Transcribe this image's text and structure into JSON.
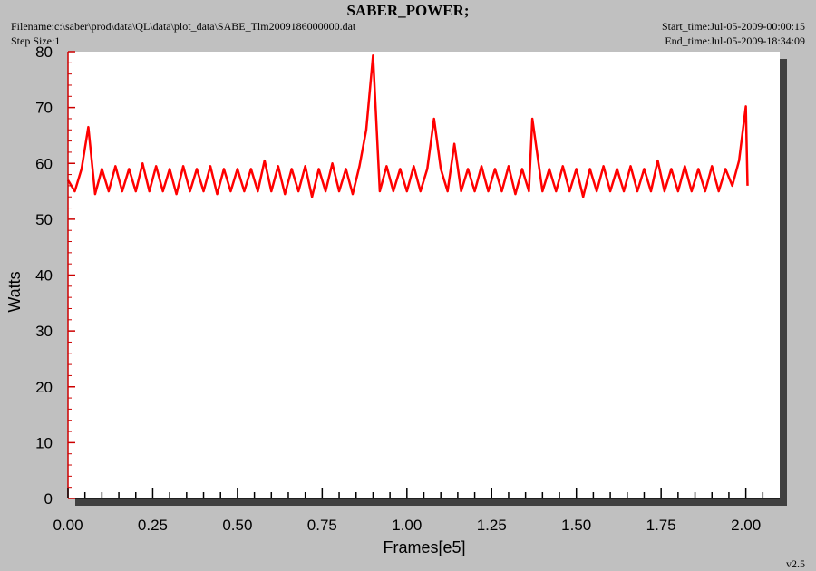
{
  "chart_data": {
    "type": "line",
    "title": "SABER_POWER;",
    "filename": "Filename:c:\\saber\\prod\\data\\QL\\data\\plot_data\\SABE_Tlm2009186000000.dat",
    "step_size": "Step Size:1",
    "start_time": "Start_time:Jul-05-2009-00:00:15",
    "end_time": "End_time:Jul-05-2009-18:34:09",
    "version": "v2.5",
    "xlabel": "Frames[e5]",
    "ylabel": "Watts",
    "xlim": [
      0,
      2.1
    ],
    "ylim": [
      0,
      80
    ],
    "xticks": [
      {
        "value": 0,
        "label": "0.00"
      },
      {
        "value": 0.25,
        "label": "0.25"
      },
      {
        "value": 0.5,
        "label": "0.50"
      },
      {
        "value": 0.75,
        "label": "0.75"
      },
      {
        "value": 1,
        "label": "1.00"
      },
      {
        "value": 1.25,
        "label": "1.25"
      },
      {
        "value": 1.5,
        "label": "1.50"
      },
      {
        "value": 1.75,
        "label": "1.75"
      },
      {
        "value": 2,
        "label": "2.00"
      }
    ],
    "yticks": [
      0,
      10,
      20,
      30,
      40,
      50,
      60,
      70,
      80
    ],
    "xminorticks": [
      0.05,
      0.1,
      0.15,
      0.2,
      0.3,
      0.35,
      0.4,
      0.45,
      0.55,
      0.6,
      0.65,
      0.7,
      0.8,
      0.85,
      0.9,
      0.95,
      1.05,
      1.1,
      1.15,
      1.2,
      1.3,
      1.35,
      1.4,
      1.45,
      1.55,
      1.6,
      1.65,
      1.7,
      1.8,
      1.85,
      1.9,
      1.95,
      2.05
    ],
    "yminorticks": [
      2,
      4,
      6,
      8,
      12,
      14,
      16,
      18,
      22,
      24,
      26,
      28,
      32,
      34,
      36,
      38,
      42,
      44,
      46,
      48,
      52,
      54,
      56,
      58,
      62,
      64,
      66,
      68,
      72,
      74,
      76,
      78
    ],
    "series": [
      {
        "color": "#ff0000",
        "x": [
          0,
          0.02,
          0.04,
          0.06,
          0.08,
          0.1,
          0.12,
          0.14,
          0.16,
          0.18,
          0.2,
          0.22,
          0.24,
          0.26,
          0.28,
          0.3,
          0.32,
          0.34,
          0.36,
          0.38,
          0.4,
          0.42,
          0.44,
          0.46,
          0.48,
          0.5,
          0.52,
          0.54,
          0.56,
          0.58,
          0.6,
          0.62,
          0.64,
          0.66,
          0.68,
          0.7,
          0.72,
          0.74,
          0.76,
          0.78,
          0.8,
          0.82,
          0.84,
          0.86,
          0.88,
          0.9,
          0.92,
          0.94,
          0.96,
          0.98,
          1,
          1.02,
          1.04,
          1.06,
          1.08,
          1.1,
          1.12,
          1.14,
          1.16,
          1.18,
          1.2,
          1.22,
          1.24,
          1.26,
          1.28,
          1.3,
          1.32,
          1.34,
          1.36,
          1.37,
          1.4,
          1.42,
          1.44,
          1.46,
          1.48,
          1.5,
          1.52,
          1.54,
          1.56,
          1.58,
          1.6,
          1.62,
          1.64,
          1.66,
          1.68,
          1.7,
          1.72,
          1.74,
          1.76,
          1.78,
          1.8,
          1.82,
          1.84,
          1.86,
          1.88,
          1.9,
          1.92,
          1.94,
          1.96,
          1.98,
          2,
          2.005
        ],
        "values": [
          57,
          55,
          59,
          66.5,
          54.5,
          59,
          55,
          59.5,
          55,
          59,
          55,
          60,
          55,
          59.5,
          55,
          59,
          54.5,
          59.5,
          55,
          59,
          55,
          59.5,
          54.5,
          59,
          55,
          59,
          55,
          59,
          55,
          60.5,
          55,
          59.5,
          54.5,
          59,
          55,
          59.5,
          54,
          59,
          55,
          60,
          55,
          59,
          54.5,
          59.5,
          66,
          79.3,
          55,
          59.5,
          55,
          59,
          55,
          59.5,
          55,
          59,
          68,
          59,
          55,
          63.5,
          55,
          59,
          55,
          59.5,
          55,
          59,
          55,
          59.5,
          54.5,
          59,
          55,
          68,
          55,
          59,
          55,
          59.5,
          55,
          59,
          54,
          59,
          55,
          59.5,
          55,
          59,
          55,
          59.5,
          55,
          59,
          55,
          60.5,
          55,
          59,
          55,
          59.5,
          55,
          59,
          55,
          59.5,
          55,
          59,
          56,
          60.5,
          70.2,
          56
        ]
      }
    ]
  }
}
